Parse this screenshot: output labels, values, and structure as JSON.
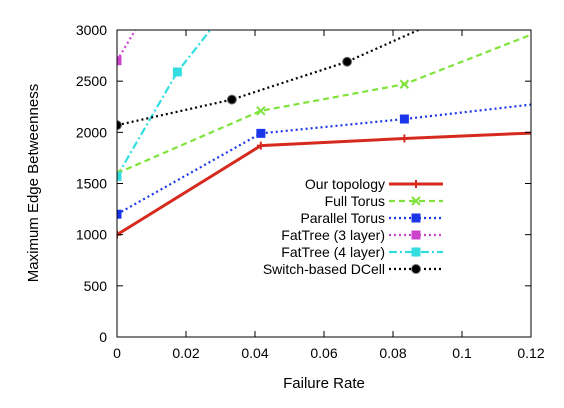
{
  "chart_data": {
    "type": "line",
    "title": "",
    "xlabel": "Failure Rate",
    "ylabel": "Maximum Edge Betweenness",
    "xlim": [
      0,
      0.12
    ],
    "ylim": [
      0,
      3000
    ],
    "x_ticks": [
      "0",
      "0.02",
      "0.04",
      "0.06",
      "0.08",
      "0.1",
      "0.12"
    ],
    "y_ticks": [
      "0",
      "500",
      "1000",
      "1500",
      "2000",
      "2500",
      "3000"
    ],
    "grid": false,
    "legend_position": "bottom-right",
    "series": [
      {
        "name": "Our topology",
        "color": "#d62a1e",
        "marker": "plus",
        "line_style": "solid",
        "x": [
          0,
          0.0417,
          0.0833,
          0.125
        ],
        "y": [
          1000,
          1870,
          1940,
          2000
        ]
      },
      {
        "name": "Full Torus",
        "color": "#7fe33b",
        "marker": "cross",
        "line_style": "dashed",
        "x": [
          0,
          0.0417,
          0.0833,
          0.125
        ],
        "y": [
          1600,
          2210,
          2470,
          3020
        ]
      },
      {
        "name": "Parallel Torus",
        "color": "#1a36e8",
        "marker": "square",
        "line_style": "dotted",
        "x": [
          0,
          0.0417,
          0.0833,
          0.125
        ],
        "y": [
          1200,
          1990,
          2130,
          2290
        ]
      },
      {
        "name": "FatTree (3 layer)",
        "color": "#cc44cc",
        "marker": "square",
        "line_style": "dotted",
        "x": [
          0,
          0.006
        ],
        "y": [
          2700,
          3040
        ]
      },
      {
        "name": "FatTree (4 layer)",
        "color": "#33dde0",
        "marker": "square",
        "line_style": "dashdot",
        "x": [
          0,
          0.0175,
          0.028
        ],
        "y": [
          1570,
          2590,
          3040
        ]
      },
      {
        "name": "Switch-based DCell",
        "color": "#000000",
        "marker": "circle",
        "line_style": "dotted",
        "x": [
          0,
          0.0333,
          0.0667,
          0.09
        ],
        "y": [
          2070,
          2320,
          2690,
          3040
        ]
      }
    ]
  }
}
